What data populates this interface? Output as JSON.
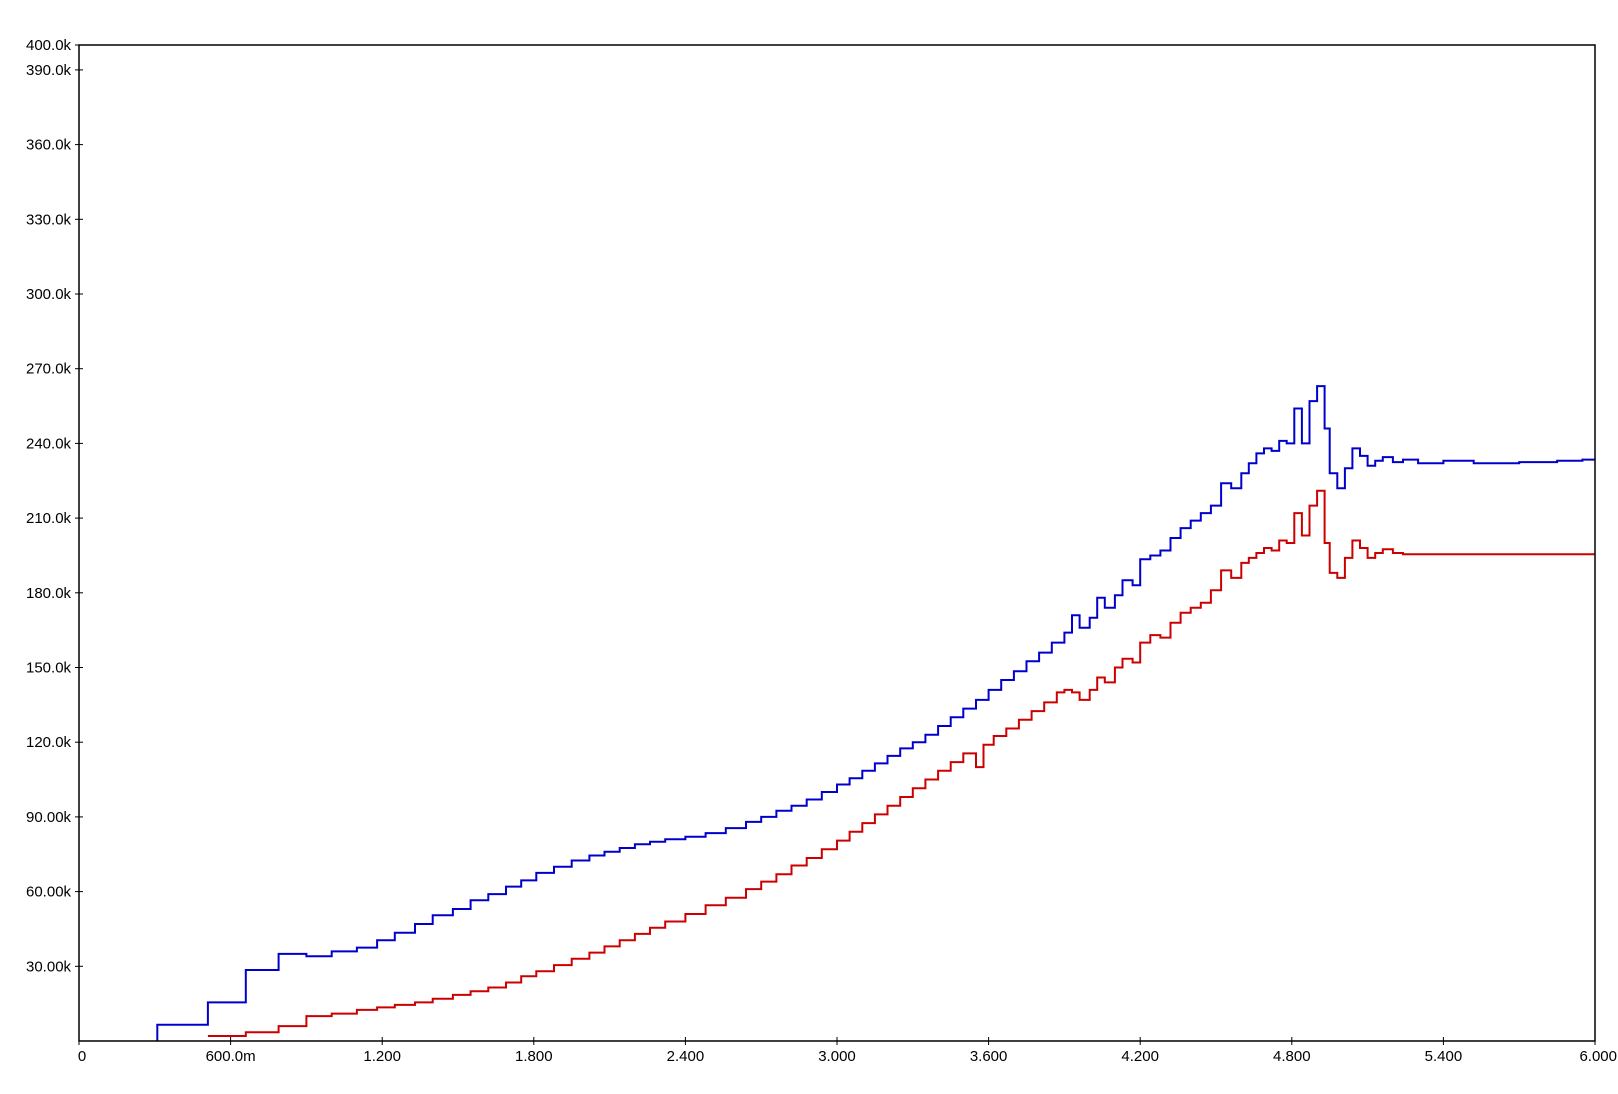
{
  "chart_data": {
    "type": "line",
    "style": "step",
    "grid": false,
    "legend": "none",
    "title": "",
    "xlabel": "",
    "ylabel": "",
    "xlim": [
      0,
      6.0
    ],
    "ylim": [
      0,
      400000
    ],
    "x_ticks": [
      {
        "value": 0,
        "label": "0"
      },
      {
        "value": 0.6,
        "label": "600.0m"
      },
      {
        "value": 1.2,
        "label": "1.200"
      },
      {
        "value": 1.8,
        "label": "1.800"
      },
      {
        "value": 2.4,
        "label": "2.400"
      },
      {
        "value": 3.0,
        "label": "3.000"
      },
      {
        "value": 3.6,
        "label": "3.600"
      },
      {
        "value": 4.2,
        "label": "4.200"
      },
      {
        "value": 4.8,
        "label": "4.800"
      },
      {
        "value": 5.4,
        "label": "5.400"
      },
      {
        "value": 6.0,
        "label": "6.000"
      }
    ],
    "y_ticks": [
      {
        "value": 30000,
        "label": "30.00k"
      },
      {
        "value": 60000,
        "label": "60.00k"
      },
      {
        "value": 90000,
        "label": "90.00k"
      },
      {
        "value": 120000,
        "label": "120.0k"
      },
      {
        "value": 150000,
        "label": "150.0k"
      },
      {
        "value": 180000,
        "label": "180.0k"
      },
      {
        "value": 210000,
        "label": "210.0k"
      },
      {
        "value": 240000,
        "label": "240.0k"
      },
      {
        "value": 270000,
        "label": "270.0k"
      },
      {
        "value": 300000,
        "label": "300.0k"
      },
      {
        "value": 330000,
        "label": "330.0k"
      },
      {
        "value": 360000,
        "label": "360.0k"
      },
      {
        "value": 390000,
        "label": "390.0k"
      },
      {
        "value": 400000,
        "label": "400.0k"
      }
    ],
    "series": [
      {
        "color": "#0000cc",
        "points": [
          [
            0.31,
            0
          ],
          [
            0.31,
            6500
          ],
          [
            0.51,
            15500
          ],
          [
            0.66,
            28500
          ],
          [
            0.79,
            35000
          ],
          [
            0.9,
            34000
          ],
          [
            1.0,
            36000
          ],
          [
            1.1,
            37500
          ],
          [
            1.18,
            40500
          ],
          [
            1.25,
            43500
          ],
          [
            1.33,
            47000
          ],
          [
            1.4,
            50500
          ],
          [
            1.48,
            53000
          ],
          [
            1.55,
            56500
          ],
          [
            1.62,
            59000
          ],
          [
            1.69,
            62000
          ],
          [
            1.75,
            64500
          ],
          [
            1.81,
            67500
          ],
          [
            1.88,
            70000
          ],
          [
            1.95,
            72500
          ],
          [
            2.02,
            74500
          ],
          [
            2.08,
            76000
          ],
          [
            2.14,
            77500
          ],
          [
            2.2,
            79000
          ],
          [
            2.26,
            80000
          ],
          [
            2.32,
            81000
          ],
          [
            2.4,
            82000
          ],
          [
            2.48,
            83500
          ],
          [
            2.56,
            85500
          ],
          [
            2.64,
            88000
          ],
          [
            2.7,
            90000
          ],
          [
            2.76,
            92500
          ],
          [
            2.82,
            94500
          ],
          [
            2.88,
            97000
          ],
          [
            2.94,
            100000
          ],
          [
            3.0,
            103000
          ],
          [
            3.05,
            105500
          ],
          [
            3.1,
            108500
          ],
          [
            3.15,
            111500
          ],
          [
            3.2,
            114500
          ],
          [
            3.25,
            117500
          ],
          [
            3.3,
            120000
          ],
          [
            3.35,
            123000
          ],
          [
            3.4,
            126500
          ],
          [
            3.45,
            130000
          ],
          [
            3.5,
            133500
          ],
          [
            3.55,
            137000
          ],
          [
            3.6,
            141000
          ],
          [
            3.65,
            145000
          ],
          [
            3.7,
            148500
          ],
          [
            3.75,
            152500
          ],
          [
            3.8,
            156000
          ],
          [
            3.85,
            160000
          ],
          [
            3.9,
            164000
          ],
          [
            3.93,
            171000
          ],
          [
            3.96,
            166000
          ],
          [
            4.0,
            170000
          ],
          [
            4.03,
            178000
          ],
          [
            4.06,
            174000
          ],
          [
            4.1,
            179000
          ],
          [
            4.13,
            185000
          ],
          [
            4.17,
            183000
          ],
          [
            4.2,
            193500
          ],
          [
            4.24,
            195000
          ],
          [
            4.28,
            197000
          ],
          [
            4.32,
            202000
          ],
          [
            4.36,
            206000
          ],
          [
            4.4,
            209000
          ],
          [
            4.44,
            212000
          ],
          [
            4.48,
            215000
          ],
          [
            4.52,
            224000
          ],
          [
            4.56,
            222000
          ],
          [
            4.6,
            228000
          ],
          [
            4.63,
            232000
          ],
          [
            4.66,
            236000
          ],
          [
            4.69,
            238000
          ],
          [
            4.72,
            237000
          ],
          [
            4.75,
            241000
          ],
          [
            4.78,
            240000
          ],
          [
            4.81,
            254000
          ],
          [
            4.84,
            240000
          ],
          [
            4.87,
            257000
          ],
          [
            4.9,
            263000
          ],
          [
            4.93,
            246000
          ],
          [
            4.95,
            228000
          ],
          [
            4.98,
            222000
          ],
          [
            5.01,
            230000
          ],
          [
            5.04,
            238000
          ],
          [
            5.07,
            235000
          ],
          [
            5.1,
            231000
          ],
          [
            5.13,
            233000
          ],
          [
            5.16,
            234500
          ],
          [
            5.2,
            232500
          ],
          [
            5.24,
            233500
          ],
          [
            5.3,
            232000
          ],
          [
            5.4,
            233000
          ],
          [
            5.52,
            232000
          ],
          [
            5.7,
            232500
          ],
          [
            5.85,
            233000
          ],
          [
            5.95,
            233500
          ],
          [
            6.0,
            233500
          ]
        ]
      },
      {
        "color": "#cc0000",
        "points": [
          [
            0.51,
            2000
          ],
          [
            0.66,
            3500
          ],
          [
            0.79,
            6000
          ],
          [
            0.9,
            10000
          ],
          [
            1.0,
            11000
          ],
          [
            1.1,
            12500
          ],
          [
            1.18,
            13500
          ],
          [
            1.25,
            14500
          ],
          [
            1.33,
            15500
          ],
          [
            1.4,
            17000
          ],
          [
            1.48,
            18500
          ],
          [
            1.55,
            20000
          ],
          [
            1.62,
            21500
          ],
          [
            1.69,
            23500
          ],
          [
            1.75,
            26000
          ],
          [
            1.81,
            28000
          ],
          [
            1.88,
            30500
          ],
          [
            1.95,
            33000
          ],
          [
            2.02,
            35500
          ],
          [
            2.08,
            38000
          ],
          [
            2.14,
            40500
          ],
          [
            2.2,
            43000
          ],
          [
            2.26,
            45500
          ],
          [
            2.32,
            48000
          ],
          [
            2.4,
            51000
          ],
          [
            2.48,
            54500
          ],
          [
            2.56,
            57500
          ],
          [
            2.64,
            61000
          ],
          [
            2.7,
            64000
          ],
          [
            2.76,
            67000
          ],
          [
            2.82,
            70500
          ],
          [
            2.88,
            73500
          ],
          [
            2.94,
            77000
          ],
          [
            3.0,
            80500
          ],
          [
            3.05,
            84000
          ],
          [
            3.1,
            87500
          ],
          [
            3.15,
            91000
          ],
          [
            3.2,
            94500
          ],
          [
            3.25,
            98000
          ],
          [
            3.3,
            101500
          ],
          [
            3.35,
            105000
          ],
          [
            3.4,
            108500
          ],
          [
            3.45,
            112000
          ],
          [
            3.5,
            115500
          ],
          [
            3.55,
            110000
          ],
          [
            3.58,
            119000
          ],
          [
            3.62,
            122500
          ],
          [
            3.67,
            125500
          ],
          [
            3.72,
            129000
          ],
          [
            3.77,
            132500
          ],
          [
            3.82,
            136000
          ],
          [
            3.87,
            140000
          ],
          [
            3.9,
            141000
          ],
          [
            3.93,
            140000
          ],
          [
            3.96,
            137000
          ],
          [
            4.0,
            141000
          ],
          [
            4.03,
            146000
          ],
          [
            4.06,
            144000
          ],
          [
            4.1,
            150000
          ],
          [
            4.13,
            153500
          ],
          [
            4.17,
            152000
          ],
          [
            4.2,
            160000
          ],
          [
            4.24,
            163000
          ],
          [
            4.28,
            162000
          ],
          [
            4.32,
            168000
          ],
          [
            4.36,
            172000
          ],
          [
            4.4,
            174000
          ],
          [
            4.44,
            176000
          ],
          [
            4.48,
            181000
          ],
          [
            4.52,
            189000
          ],
          [
            4.56,
            186000
          ],
          [
            4.6,
            192000
          ],
          [
            4.63,
            194000
          ],
          [
            4.66,
            196000
          ],
          [
            4.69,
            198000
          ],
          [
            4.72,
            197000
          ],
          [
            4.75,
            201000
          ],
          [
            4.78,
            200000
          ],
          [
            4.81,
            212000
          ],
          [
            4.84,
            203000
          ],
          [
            4.87,
            215000
          ],
          [
            4.9,
            221000
          ],
          [
            4.93,
            200000
          ],
          [
            4.95,
            188000
          ],
          [
            4.98,
            186000
          ],
          [
            5.01,
            194000
          ],
          [
            5.04,
            201000
          ],
          [
            5.07,
            198000
          ],
          [
            5.1,
            194000
          ],
          [
            5.13,
            196000
          ],
          [
            5.16,
            197500
          ],
          [
            5.2,
            196000
          ],
          [
            5.24,
            195500
          ],
          [
            6.0,
            195500
          ]
        ]
      }
    ]
  }
}
